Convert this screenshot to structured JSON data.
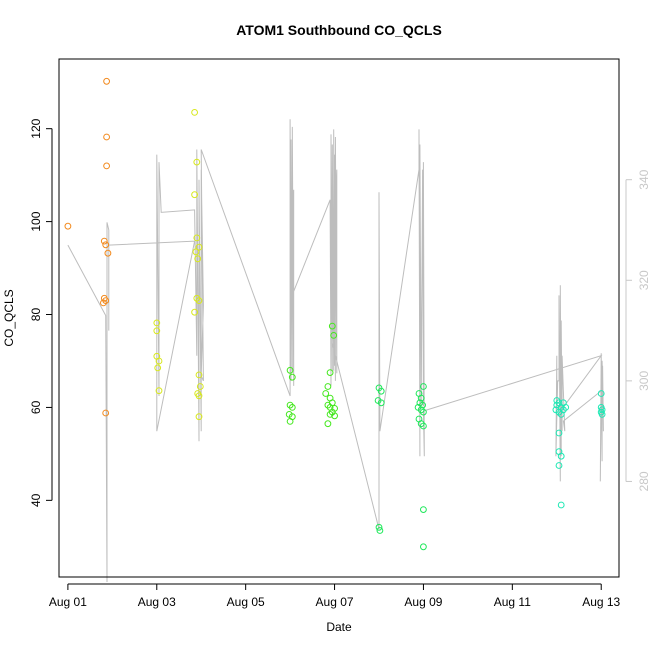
{
  "chart_data": {
    "type": "scatter",
    "title": "ATOM1 Southbound CO_QCLS",
    "xlabel": "Date",
    "ylabel": "CO_QCLS",
    "xlim": [
      -0.2,
      12.4
    ],
    "ylim": [
      23.5,
      135.0
    ],
    "x_ticks": [
      0,
      2,
      4,
      6,
      8,
      10,
      12
    ],
    "x_tick_labels": [
      "Aug 01",
      "Aug 03",
      "Aug 05",
      "Aug 07",
      "Aug 09",
      "Aug 11",
      "Aug 13"
    ],
    "x_unit": "days since Aug 01",
    "y_ticks": [
      40,
      60,
      80,
      100,
      120
    ],
    "y2_ticks": [
      280,
      300,
      320,
      340
    ],
    "y2lim": [
      261.0,
      364.0
    ],
    "grid": false,
    "colors": {
      "primary_series": "#000000",
      "secondary_line": "#bdbdbd",
      "secondary_axis": "#c8c8c8"
    },
    "point_groups": [
      {
        "color": "#f28a1e",
        "points": [
          [
            0.0,
            99.0
          ],
          [
            0.87,
            130.2
          ],
          [
            0.87,
            118.2
          ],
          [
            0.87,
            112.0
          ],
          [
            0.82,
            95.8
          ],
          [
            0.85,
            95.0
          ],
          [
            0.9,
            93.2
          ],
          [
            0.82,
            83.5
          ],
          [
            0.85,
            83.0
          ],
          [
            0.8,
            82.5
          ],
          [
            0.85,
            58.8
          ]
        ]
      },
      {
        "color": "#d8e81e",
        "points": [
          [
            2.0,
            78.2
          ],
          [
            2.0,
            76.5
          ],
          [
            2.0,
            71.0
          ],
          [
            2.05,
            70.0
          ],
          [
            2.02,
            68.5
          ],
          [
            2.05,
            63.6
          ],
          [
            2.85,
            123.5
          ],
          [
            2.9,
            112.8
          ],
          [
            2.85,
            105.8
          ],
          [
            2.9,
            96.5
          ],
          [
            2.95,
            94.5
          ],
          [
            2.88,
            93.5
          ],
          [
            2.92,
            92.0
          ],
          [
            2.9,
            83.5
          ],
          [
            2.95,
            83.0
          ],
          [
            2.85,
            80.5
          ],
          [
            2.95,
            67.0
          ],
          [
            2.98,
            64.5
          ],
          [
            2.92,
            63.0
          ],
          [
            2.95,
            62.5
          ],
          [
            2.95,
            58.0
          ]
        ]
      },
      {
        "color": "#44e81e",
        "points": [
          [
            5.0,
            68.0
          ],
          [
            5.05,
            66.5
          ],
          [
            5.0,
            60.5
          ],
          [
            5.05,
            60.0
          ],
          [
            4.98,
            58.5
          ],
          [
            5.05,
            58.0
          ],
          [
            5.0,
            57.0
          ],
          [
            5.9,
            67.5
          ],
          [
            5.85,
            64.5
          ],
          [
            5.8,
            63.0
          ],
          [
            5.9,
            62.0
          ],
          [
            5.95,
            61.0
          ],
          [
            5.85,
            60.5
          ],
          [
            5.9,
            60.0
          ],
          [
            6.0,
            59.8
          ],
          [
            5.95,
            59.0
          ],
          [
            5.9,
            58.5
          ],
          [
            5.85,
            56.5
          ],
          [
            5.95,
            77.5
          ],
          [
            5.98,
            75.5
          ],
          [
            6.0,
            58.2
          ]
        ]
      },
      {
        "color": "#1ee85a",
        "points": [
          [
            7.0,
            64.2
          ],
          [
            7.05,
            63.5
          ],
          [
            6.98,
            61.5
          ],
          [
            7.05,
            61.0
          ],
          [
            7.0,
            34.2
          ],
          [
            7.02,
            33.5
          ],
          [
            7.9,
            63.0
          ],
          [
            7.95,
            62.0
          ],
          [
            7.92,
            61.0
          ],
          [
            7.98,
            60.5
          ],
          [
            7.88,
            60.0
          ],
          [
            7.95,
            59.5
          ],
          [
            8.0,
            59.0
          ],
          [
            7.9,
            57.5
          ],
          [
            7.95,
            56.5
          ],
          [
            8.0,
            64.5
          ],
          [
            8.0,
            56.0
          ],
          [
            8.0,
            38.0
          ],
          [
            8.0,
            30.0
          ]
        ]
      },
      {
        "color": "#1ee8b4",
        "points": [
          [
            11.0,
            61.5
          ],
          [
            11.05,
            61.0
          ],
          [
            11.0,
            60.5
          ],
          [
            11.1,
            60.0
          ],
          [
            10.98,
            59.5
          ],
          [
            11.05,
            59.0
          ],
          [
            11.1,
            58.5
          ],
          [
            11.05,
            54.5
          ],
          [
            11.05,
            50.5
          ],
          [
            11.1,
            49.5
          ],
          [
            11.05,
            47.5
          ],
          [
            11.1,
            39.0
          ],
          [
            11.15,
            61.0
          ],
          [
            11.2,
            60.0
          ],
          [
            11.15,
            59.5
          ],
          [
            12.0,
            63.0
          ],
          [
            12.0,
            60.0
          ],
          [
            12.02,
            59.5
          ],
          [
            12.0,
            59.0
          ],
          [
            12.02,
            58.5
          ]
        ]
      }
    ],
    "secondary_series": {
      "axis": "right",
      "points": [
        [
          0.0,
          327.0
        ],
        [
          0.85,
          313.0
        ],
        [
          0.88,
          260.0
        ],
        [
          0.88,
          331.5
        ],
        [
          0.92,
          330.0
        ],
        [
          0.92,
          310.0
        ],
        [
          0.92,
          327.0
        ],
        [
          2.85,
          327.8
        ],
        [
          2.0,
          290.0
        ],
        [
          2.0,
          345.0
        ],
        [
          2.05,
          297.0
        ],
        [
          2.05,
          343.5
        ],
        [
          2.1,
          333.5
        ],
        [
          2.85,
          334.0
        ],
        [
          2.9,
          305.0
        ],
        [
          2.9,
          346.0
        ],
        [
          2.95,
          288.0
        ],
        [
          2.95,
          340.0
        ],
        [
          3.0,
          290.0
        ],
        [
          3.0,
          342.0
        ],
        [
          3.05,
          315.0
        ],
        [
          3.0,
          301.0
        ],
        [
          3.05,
          300.0
        ],
        [
          3.0,
          346.0
        ],
        [
          5.0,
          297.0
        ],
        [
          5.0,
          352.0
        ],
        [
          5.02,
          300.0
        ],
        [
          5.02,
          348.0
        ],
        [
          5.05,
          302.0
        ],
        [
          5.05,
          350.5
        ],
        [
          5.08,
          299.0
        ],
        [
          5.08,
          338.0
        ],
        [
          5.05,
          325.0
        ],
        [
          5.0,
          316.0
        ],
        [
          5.9,
          336.0
        ],
        [
          5.92,
          299.0
        ],
        [
          5.92,
          349.0
        ],
        [
          5.95,
          302.0
        ],
        [
          5.95,
          347.0
        ],
        [
          5.98,
          302.0
        ],
        [
          5.98,
          350.0
        ],
        [
          6.0,
          303.0
        ],
        [
          6.0,
          345.0
        ],
        [
          6.02,
          300.0
        ],
        [
          6.02,
          348.5
        ],
        [
          6.05,
          301.5
        ],
        [
          6.05,
          342.0
        ],
        [
          5.95,
          307.5
        ],
        [
          7.0,
          270.5
        ],
        [
          7.0,
          337.5
        ],
        [
          7.02,
          290.0
        ],
        [
          7.9,
          342.0
        ],
        [
          7.9,
          350.0
        ],
        [
          7.92,
          285.0
        ],
        [
          7.92,
          347.0
        ],
        [
          7.95,
          295.0
        ],
        [
          7.98,
          342.0
        ],
        [
          8.0,
          295.0
        ],
        [
          8.0,
          343.5
        ],
        [
          8.02,
          285.0
        ],
        [
          8.0,
          294.0
        ],
        [
          12.0,
          305.0
        ],
        [
          11.0,
          293.0
        ],
        [
          11.0,
          305.0
        ],
        [
          10.98,
          285.0
        ],
        [
          11.02,
          300.0
        ],
        [
          11.05,
          300.0
        ],
        [
          11.05,
          317.0
        ],
        [
          11.08,
          280.0
        ],
        [
          11.08,
          319.0
        ],
        [
          11.1,
          285.0
        ],
        [
          11.1,
          312.0
        ],
        [
          11.12,
          290.0
        ],
        [
          11.12,
          305.0
        ],
        [
          11.18,
          290.0
        ],
        [
          11.15,
          292.0
        ],
        [
          12.0,
          298.0
        ],
        [
          11.98,
          280.0
        ],
        [
          12.0,
          305.5
        ],
        [
          12.02,
          284.0
        ],
        [
          12.02,
          304.0
        ],
        [
          12.05,
          290.0
        ],
        [
          12.03,
          303.0
        ]
      ]
    }
  }
}
